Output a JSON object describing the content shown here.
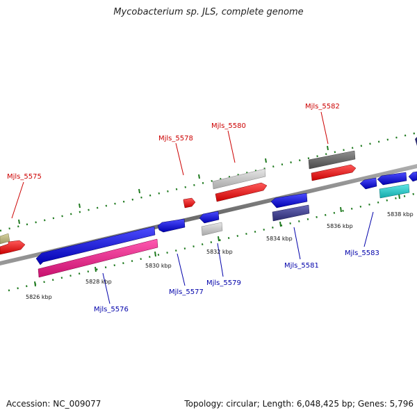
{
  "title": "Mycobacterium sp. JLS, complete genome",
  "footer": {
    "accession": "Accession: NC_009077",
    "summary": "Topology: circular; Length: 6,048,425 bp; Genes: 5,796"
  },
  "colors": {
    "label_top": "#cc0000",
    "label_bottom": "#0000aa",
    "backbone": "#888888",
    "tick": "#1f7a1f"
  },
  "scale_labels": [
    {
      "id": "kbp-5826",
      "text": "5826 kbp"
    },
    {
      "id": "kbp-5828",
      "text": "5828 kbp"
    },
    {
      "id": "kbp-5830",
      "text": "5830 kbp"
    },
    {
      "id": "kbp-5832",
      "text": "5832 kbp"
    },
    {
      "id": "kbp-5834",
      "text": "5834 kbp"
    },
    {
      "id": "kbp-5836",
      "text": "5836 kbp"
    },
    {
      "id": "kbp-5838",
      "text": "5838 kbp"
    }
  ],
  "gene_labels": [
    {
      "id": "5575",
      "text": "Mjls_5575",
      "strand": "top"
    },
    {
      "id": "5578",
      "text": "Mjls_5578",
      "strand": "top"
    },
    {
      "id": "5580",
      "text": "Mjls_5580",
      "strand": "top"
    },
    {
      "id": "5582",
      "text": "Mjls_5582",
      "strand": "top"
    },
    {
      "id": "5576",
      "text": "Mjls_5576",
      "strand": "bottom"
    },
    {
      "id": "5577",
      "text": "Mjls_5577",
      "strand": "bottom"
    },
    {
      "id": "5579",
      "text": "Mjls_5579",
      "strand": "bottom"
    },
    {
      "id": "5581",
      "text": "Mjls_5581",
      "strand": "bottom"
    },
    {
      "id": "5583",
      "text": "Mjls_5583",
      "strand": "bottom"
    }
  ]
}
